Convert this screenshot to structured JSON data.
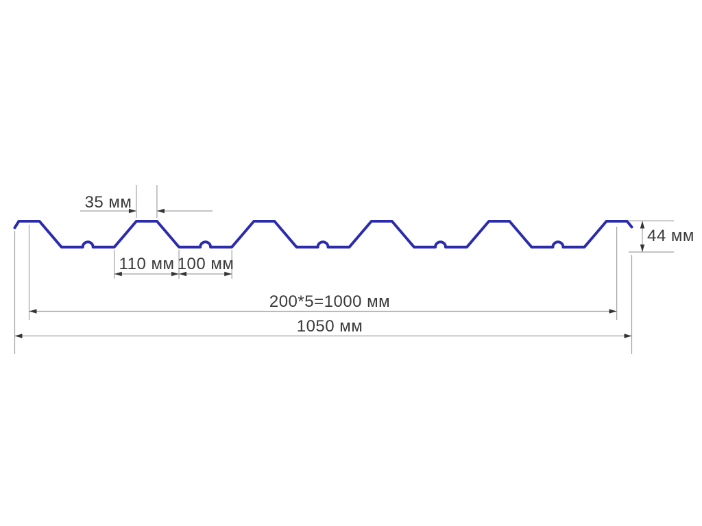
{
  "diagram": {
    "type": "technical-profile-drawing",
    "subject": "trapezoidal profiled metal sheet cross-section",
    "units": "мм",
    "colors": {
      "background": "#ffffff",
      "profile_line": "#2b2bae",
      "dimension_line": "#a0a0a0",
      "arrow": "#333333",
      "label_text": "#3a3a3a"
    },
    "dimensions_mm": {
      "crest_width": 35,
      "rib_base_width": 110,
      "valley_width": 100,
      "profile_height": 44,
      "pitch": 200,
      "pitch_count": 5,
      "cover_width": 1000,
      "total_width": 1050,
      "crest_count": 6
    },
    "labels": {
      "crest": "35 мм",
      "rib_base": "110 мм",
      "valley": "100 мм",
      "cover_width": "200*5=1000 мм",
      "total_width": "1050 мм",
      "height": "44 мм"
    }
  }
}
